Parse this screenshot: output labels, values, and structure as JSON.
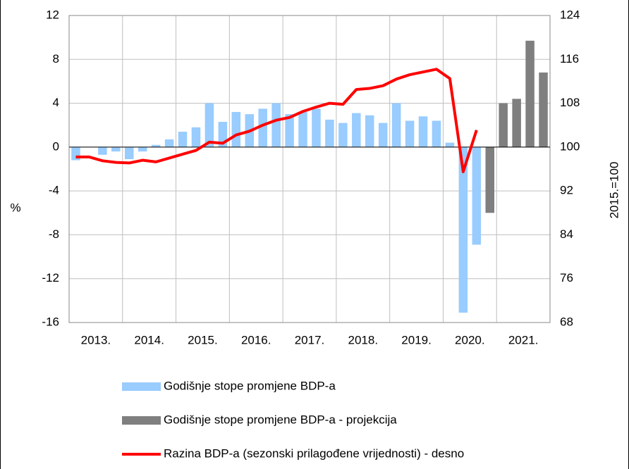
{
  "chart_data": {
    "type": "bar_line",
    "y_label": "%",
    "y2_label": "2015.=100",
    "categories": [
      "2013.",
      null,
      null,
      null,
      "2014.",
      null,
      null,
      null,
      "2015.",
      null,
      null,
      null,
      "2016.",
      null,
      null,
      null,
      "2017.",
      null,
      null,
      null,
      "2018.",
      null,
      null,
      null,
      "2019.",
      null,
      null,
      null,
      "2020.",
      null,
      null,
      null,
      "2021.",
      null,
      null,
      null
    ],
    "series": [
      {
        "name": "Godišnje stope promjene BDP-a",
        "type": "bar",
        "color": "#99ccff",
        "values": [
          -1.2,
          0.0,
          -0.7,
          -0.4,
          -1.1,
          -0.4,
          0.2,
          0.7,
          1.4,
          1.8,
          4.0,
          2.3,
          3.2,
          3.0,
          3.5,
          4.0,
          3.0,
          3.2,
          3.5,
          2.5,
          2.2,
          3.1,
          2.9,
          2.2,
          4.0,
          2.4,
          2.8,
          2.4,
          0.4,
          -15.1,
          -8.9,
          null,
          null,
          null,
          null,
          null
        ]
      },
      {
        "name": "Godišnje stope promjene BDP-a - projekcija",
        "type": "bar",
        "color": "#7f7f7f",
        "values": [
          null,
          null,
          null,
          null,
          null,
          null,
          null,
          null,
          null,
          null,
          null,
          null,
          null,
          null,
          null,
          null,
          null,
          null,
          null,
          null,
          null,
          null,
          null,
          null,
          null,
          null,
          null,
          null,
          null,
          null,
          null,
          -6.0,
          4.0,
          4.4,
          9.7,
          6.8
        ]
      },
      {
        "name": "Razina BDP-a (sezonski prilagođene vrijednosti) - desno",
        "type": "line",
        "axis": "y2",
        "color": "#ff0000",
        "values": [
          98.2,
          98.2,
          97.5,
          97.2,
          97.1,
          97.6,
          97.3,
          98.0,
          98.7,
          99.4,
          100.9,
          100.7,
          102.2,
          102.9,
          104.0,
          104.9,
          105.4,
          106.5,
          107.3,
          108.0,
          107.8,
          110.5,
          110.7,
          111.2,
          112.4,
          113.2,
          113.7,
          114.2,
          112.5,
          95.5,
          103.1,
          null,
          null,
          null,
          null,
          null
        ]
      }
    ],
    "ylim": [
      -16,
      12
    ],
    "yticks": [
      12,
      8,
      4,
      0,
      -4,
      -8,
      -12,
      -16
    ],
    "y2lim": [
      68,
      124
    ],
    "y2ticks": [
      124,
      116,
      108,
      100,
      92,
      84,
      76,
      68
    ],
    "grid": true,
    "legend": "bottom"
  }
}
